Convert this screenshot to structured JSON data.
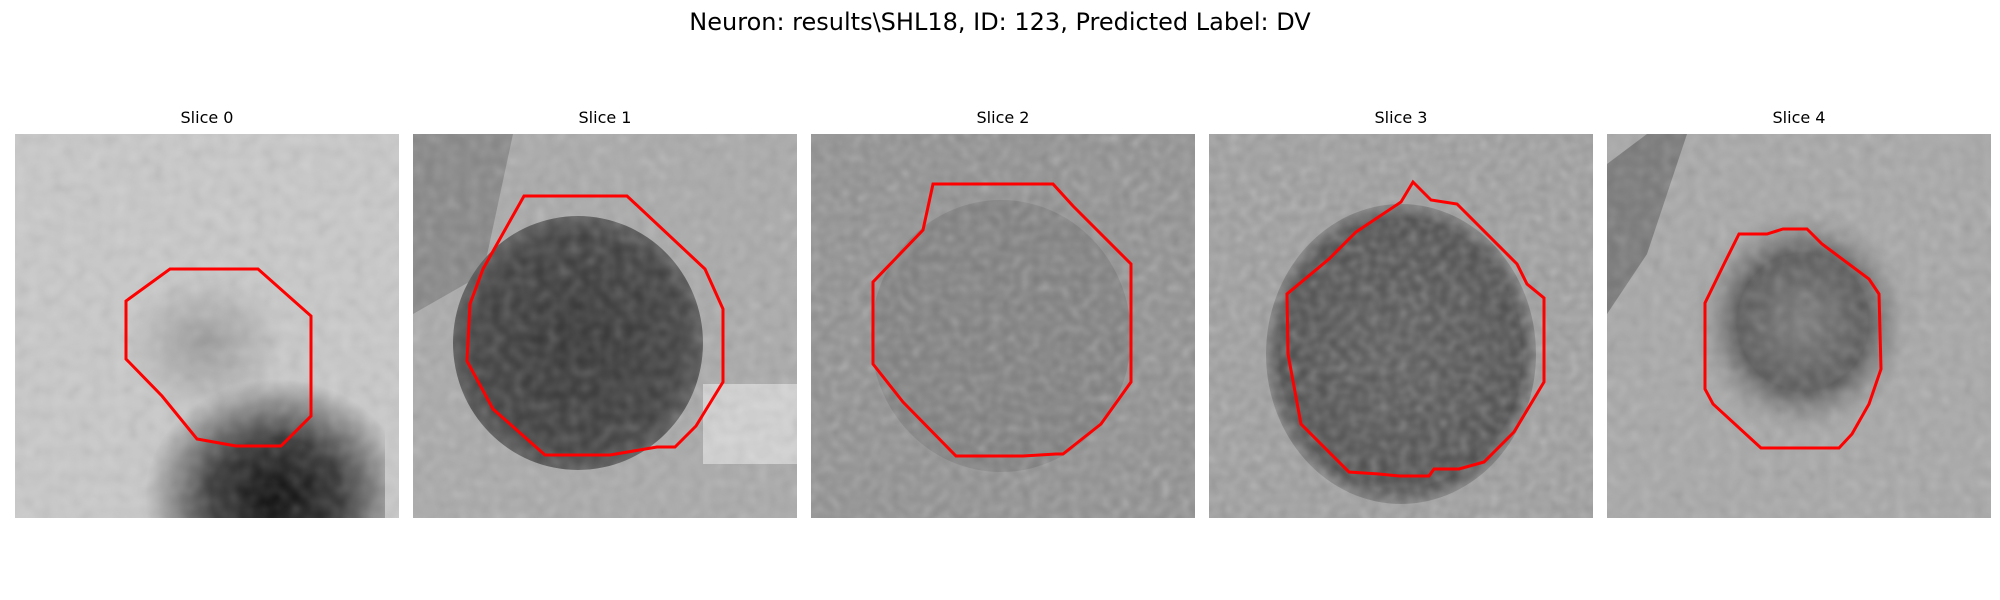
{
  "figure": {
    "title": "Neuron: results\\SHL18, ID: 123, Predicted Label: DV"
  },
  "panels": [
    {
      "title": "Slice 0"
    },
    {
      "title": "Slice 1"
    },
    {
      "title": "Slice 2"
    },
    {
      "title": "Slice 3"
    },
    {
      "title": "Slice 4"
    }
  ],
  "colors": {
    "contour": "#ff0000",
    "background": "#ffffff"
  }
}
